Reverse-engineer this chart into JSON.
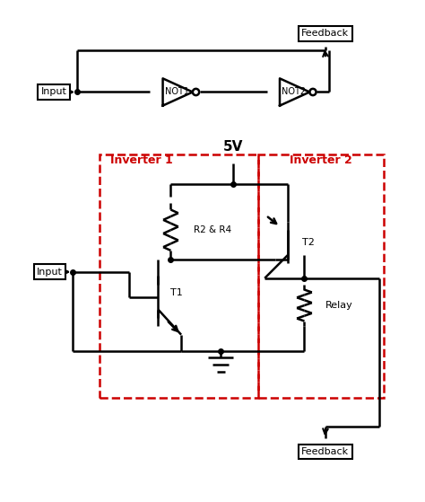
{
  "fig_width": 4.74,
  "fig_height": 5.59,
  "dpi": 100,
  "bg_color": "#ffffff",
  "line_color": "#000000",
  "red_color": "#cc0000",
  "title": "",
  "inverter1_label": "Inverter 1",
  "inverter2_label": "Inverter 2",
  "5v_label": "5V",
  "feedback_top_label": "Feedback",
  "feedback_bot_label": "Feedback",
  "input_top_label": "Input",
  "input_bot_label": "Input",
  "not1_label": "NOT1",
  "not2_label": "NOT2",
  "r_label": "R2 & R4",
  "t1_label": "T1",
  "t2_label": "T2",
  "relay_label": "Relay"
}
